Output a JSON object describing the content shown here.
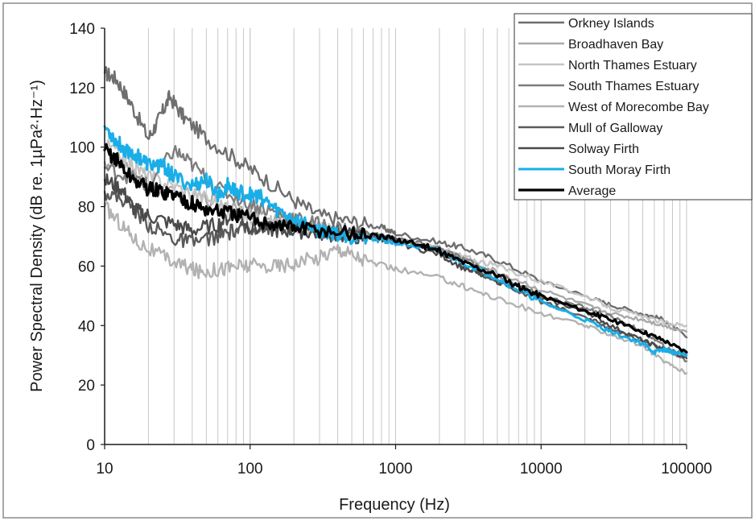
{
  "chart_data": {
    "type": "line",
    "title": "",
    "xlabel": "Frequency (Hz)",
    "ylabel": "Power Spectral Density (dB re. 1µPa²·Hz⁻¹)",
    "xscale": "log",
    "xlim": [
      10,
      100000
    ],
    "ylim": [
      0,
      140
    ],
    "x_ticks": [
      "10",
      "100",
      "1000",
      "10000",
      "100000"
    ],
    "y_ticks": [
      "0",
      "20",
      "40",
      "60",
      "80",
      "100",
      "120",
      "140"
    ],
    "grid": "vertical log gridlines",
    "legend_position": "top-right",
    "series": [
      {
        "name": "Orkney Islands",
        "color": "#6e6e6e",
        "width": 2.4,
        "points": [
          [
            10,
            125
          ],
          [
            12,
            123
          ],
          [
            15,
            115
          ],
          [
            20,
            103
          ],
          [
            24,
            110
          ],
          [
            28,
            117
          ],
          [
            35,
            110
          ],
          [
            50,
            103
          ],
          [
            80,
            96
          ],
          [
            120,
            90
          ],
          [
            200,
            82
          ],
          [
            300,
            77
          ],
          [
            500,
            75
          ],
          [
            800,
            73
          ],
          [
            1000,
            71
          ],
          [
            2000,
            68
          ],
          [
            3000,
            66
          ],
          [
            5000,
            62
          ],
          [
            10000,
            55
          ],
          [
            20000,
            50
          ],
          [
            30000,
            47
          ],
          [
            50000,
            44
          ],
          [
            70000,
            42
          ],
          [
            100000,
            36
          ]
        ]
      },
      {
        "name": "Broadhaven Bay",
        "color": "#a9a9a9",
        "width": 2.4,
        "points": [
          [
            10,
            95
          ],
          [
            15,
            92
          ],
          [
            20,
            86
          ],
          [
            30,
            84
          ],
          [
            50,
            83
          ],
          [
            80,
            80
          ],
          [
            120,
            77
          ],
          [
            200,
            74
          ],
          [
            300,
            72
          ],
          [
            500,
            71
          ],
          [
            800,
            70
          ],
          [
            1000,
            69
          ],
          [
            2000,
            66
          ],
          [
            3000,
            62
          ],
          [
            5000,
            58
          ],
          [
            10000,
            52
          ],
          [
            20000,
            47
          ],
          [
            30000,
            44
          ],
          [
            50000,
            42
          ],
          [
            70000,
            40
          ],
          [
            100000,
            38
          ]
        ]
      },
      {
        "name": "North Thames Estuary",
        "color": "#c4c4c4",
        "width": 2.4,
        "points": [
          [
            10,
            101
          ],
          [
            15,
            95
          ],
          [
            20,
            90
          ],
          [
            30,
            87
          ],
          [
            50,
            83
          ],
          [
            80,
            78
          ],
          [
            120,
            75
          ],
          [
            200,
            73
          ],
          [
            300,
            72
          ],
          [
            500,
            71
          ],
          [
            800,
            70
          ],
          [
            1000,
            69
          ],
          [
            2000,
            66
          ],
          [
            3000,
            63
          ],
          [
            5000,
            60
          ],
          [
            10000,
            55
          ],
          [
            20000,
            50
          ],
          [
            30000,
            46
          ],
          [
            50000,
            43
          ],
          [
            70000,
            41
          ],
          [
            100000,
            40
          ]
        ]
      },
      {
        "name": "South Thames Estuary",
        "color": "#7d7d7d",
        "width": 2.4,
        "points": [
          [
            10,
            93
          ],
          [
            15,
            90
          ],
          [
            20,
            87
          ],
          [
            30,
            99
          ],
          [
            40,
            94
          ],
          [
            60,
            86
          ],
          [
            100,
            81
          ],
          [
            150,
            78
          ],
          [
            200,
            76
          ],
          [
            300,
            74
          ],
          [
            500,
            72
          ],
          [
            800,
            70
          ],
          [
            1000,
            69
          ],
          [
            2000,
            66
          ],
          [
            3000,
            62
          ],
          [
            5000,
            57
          ],
          [
            10000,
            50
          ],
          [
            20000,
            46
          ],
          [
            30000,
            43
          ],
          [
            50000,
            38
          ],
          [
            70000,
            33
          ],
          [
            100000,
            28
          ]
        ]
      },
      {
        "name": "West of Morecombe Bay",
        "color": "#b2b2b2",
        "width": 2.4,
        "points": [
          [
            10,
            80
          ],
          [
            13,
            74
          ],
          [
            17,
            68
          ],
          [
            25,
            63
          ],
          [
            35,
            60
          ],
          [
            45,
            58
          ],
          [
            60,
            59
          ],
          [
            80,
            60
          ],
          [
            100,
            60
          ],
          [
            150,
            60
          ],
          [
            200,
            61
          ],
          [
            300,
            63
          ],
          [
            400,
            66
          ],
          [
            500,
            64
          ],
          [
            700,
            61
          ],
          [
            1000,
            59
          ],
          [
            2000,
            56
          ],
          [
            3000,
            53
          ],
          [
            5000,
            49
          ],
          [
            10000,
            44
          ],
          [
            20000,
            40
          ],
          [
            30000,
            37
          ],
          [
            50000,
            33
          ],
          [
            70000,
            28
          ],
          [
            100000,
            24
          ]
        ]
      },
      {
        "name": "Mull of Galloway",
        "color": "#5a5a5a",
        "width": 2.4,
        "points": [
          [
            10,
            85
          ],
          [
            14,
            82
          ],
          [
            20,
            74
          ],
          [
            30,
            69
          ],
          [
            40,
            68
          ],
          [
            60,
            70
          ],
          [
            80,
            72
          ],
          [
            100,
            73
          ],
          [
            150,
            73
          ],
          [
            200,
            73
          ],
          [
            300,
            72
          ],
          [
            500,
            71
          ],
          [
            800,
            70
          ],
          [
            1000,
            69
          ],
          [
            2000,
            65
          ],
          [
            3000,
            60
          ],
          [
            5000,
            55
          ],
          [
            10000,
            48
          ],
          [
            20000,
            43
          ],
          [
            30000,
            39
          ],
          [
            50000,
            35
          ],
          [
            70000,
            32
          ],
          [
            100000,
            30
          ]
        ]
      },
      {
        "name": "Solway Firth",
        "color": "#4a4a4a",
        "width": 2.4,
        "points": [
          [
            10,
            89
          ],
          [
            13,
            86
          ],
          [
            16,
            79
          ],
          [
            20,
            77
          ],
          [
            30,
            74
          ],
          [
            40,
            72
          ],
          [
            60,
            74
          ],
          [
            80,
            78
          ],
          [
            100,
            73
          ],
          [
            150,
            72
          ],
          [
            200,
            72
          ],
          [
            300,
            71
          ],
          [
            500,
            70
          ],
          [
            800,
            69
          ],
          [
            1000,
            68
          ],
          [
            2000,
            64
          ],
          [
            3000,
            59
          ],
          [
            5000,
            55
          ],
          [
            10000,
            49
          ],
          [
            20000,
            45
          ],
          [
            30000,
            40
          ],
          [
            50000,
            35
          ],
          [
            70000,
            32
          ],
          [
            100000,
            29
          ]
        ]
      },
      {
        "name": "South Moray Firth",
        "color": "#19aee8",
        "width": 3,
        "points": [
          [
            10,
            107
          ],
          [
            12,
            102
          ],
          [
            14,
            99
          ],
          [
            17,
            97
          ],
          [
            20,
            94
          ],
          [
            25,
            94
          ],
          [
            30,
            90
          ],
          [
            40,
            87
          ],
          [
            50,
            89
          ],
          [
            60,
            84
          ],
          [
            70,
            87
          ],
          [
            80,
            85
          ],
          [
            100,
            84
          ],
          [
            120,
            83
          ],
          [
            150,
            79
          ],
          [
            200,
            76
          ],
          [
            300,
            72
          ],
          [
            400,
            71
          ],
          [
            500,
            70
          ],
          [
            700,
            69
          ],
          [
            1000,
            68
          ],
          [
            2000,
            65
          ],
          [
            3000,
            61
          ],
          [
            5000,
            56
          ],
          [
            7000,
            52
          ],
          [
            10000,
            48
          ],
          [
            20000,
            42
          ],
          [
            30000,
            38
          ],
          [
            50000,
            34
          ],
          [
            60000,
            31
          ],
          [
            70000,
            32
          ],
          [
            80000,
            31
          ],
          [
            100000,
            30
          ]
        ]
      },
      {
        "name": "Average",
        "color": "#000000",
        "width": 3.2,
        "points": [
          [
            10,
            99
          ],
          [
            12,
            96
          ],
          [
            15,
            90
          ],
          [
            20,
            86
          ],
          [
            25,
            85
          ],
          [
            30,
            84
          ],
          [
            40,
            81
          ],
          [
            50,
            79
          ],
          [
            70,
            78
          ],
          [
            100,
            76
          ],
          [
            150,
            74
          ],
          [
            200,
            73
          ],
          [
            300,
            72
          ],
          [
            500,
            71
          ],
          [
            700,
            70
          ],
          [
            1000,
            69
          ],
          [
            1500,
            67
          ],
          [
            2000,
            65
          ],
          [
            3000,
            61
          ],
          [
            5000,
            57
          ],
          [
            7000,
            53
          ],
          [
            10000,
            50
          ],
          [
            20000,
            45
          ],
          [
            30000,
            42
          ],
          [
            50000,
            38
          ],
          [
            70000,
            35
          ],
          [
            100000,
            31
          ]
        ]
      }
    ]
  }
}
